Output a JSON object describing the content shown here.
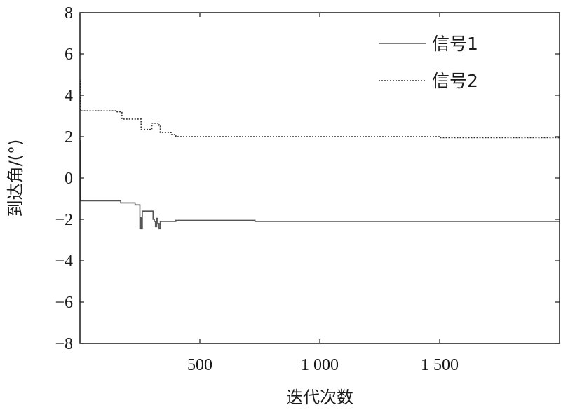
{
  "chart_data": {
    "type": "line",
    "xlabel": "迭代次数",
    "ylabel": "到达角/(°)",
    "xlim": [
      0,
      2000
    ],
    "ylim": [
      -8,
      8
    ],
    "x_ticks": [
      {
        "value": 500,
        "label": "500"
      },
      {
        "value": 1000,
        "label": "1 000"
      },
      {
        "value": 1500,
        "label": "1 500"
      }
    ],
    "y_ticks": [
      {
        "value": 8,
        "label": "8"
      },
      {
        "value": 6,
        "label": "6"
      },
      {
        "value": 4,
        "label": "4"
      },
      {
        "value": 2,
        "label": "2"
      },
      {
        "value": 0,
        "label": "0"
      },
      {
        "value": -2,
        "label": "−2"
      },
      {
        "value": -4,
        "label": "−4"
      },
      {
        "value": -6,
        "label": "−6"
      },
      {
        "value": -8,
        "label": "−8"
      }
    ],
    "grid": false,
    "legend_position": "top-right",
    "series": [
      {
        "name": "信号1",
        "style": "solid",
        "color": "#555555",
        "x": [
          1,
          2,
          3,
          4,
          110,
          170,
          230,
          250,
          252,
          255,
          260,
          270,
          300,
          305,
          310,
          315,
          320,
          325,
          330,
          335,
          340,
          350,
          400,
          700,
          730,
          1000,
          1500,
          2000
        ],
        "y": [
          1.8,
          -1.05,
          -1.1,
          -1.1,
          -1.1,
          -1.2,
          -1.3,
          -2.45,
          -1.9,
          -2.45,
          -1.6,
          -1.6,
          -1.6,
          -2.0,
          -2.1,
          -2.35,
          -1.95,
          -2.2,
          -2.45,
          -2.1,
          -2.1,
          -2.1,
          -2.05,
          -2.05,
          -2.1,
          -2.1,
          -2.1,
          -2.1
        ]
      },
      {
        "name": "信号2",
        "style": "dotted",
        "color": "#333333",
        "x": [
          1,
          2,
          3,
          4,
          5,
          150,
          175,
          230,
          255,
          295,
          300,
          320,
          330,
          335,
          340,
          380,
          400,
          1500,
          2000
        ],
        "y": [
          4.7,
          3.3,
          3.25,
          3.25,
          3.25,
          3.2,
          2.85,
          2.85,
          2.35,
          2.35,
          2.65,
          2.65,
          2.55,
          2.2,
          2.2,
          2.1,
          2.0,
          1.95,
          1.95
        ]
      }
    ]
  }
}
